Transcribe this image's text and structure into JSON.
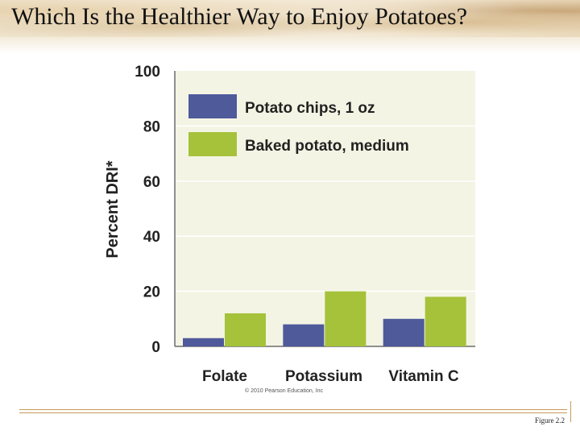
{
  "title": "Which Is the Healthier Way to Enjoy Potatoes?",
  "copyright": "© 2010 Pearson Education, Inc",
  "figure_label": "Figure 2.2",
  "colors": {
    "plot_bg": "#f4f4e4",
    "chips": "#4f5a9b",
    "baked": "#a5c23a"
  },
  "chart_data": {
    "type": "bar",
    "title": "",
    "xlabel": "",
    "ylabel": "Percent DRI*",
    "ylim": [
      0,
      100
    ],
    "yticks": [
      0,
      20,
      40,
      60,
      80,
      100
    ],
    "categories": [
      "Folate",
      "Potassium",
      "Vitamin C"
    ],
    "series": [
      {
        "name": "Potato chips, 1 oz",
        "values": [
          3,
          8,
          10
        ]
      },
      {
        "name": "Baked potato, medium",
        "values": [
          12,
          20,
          18
        ]
      }
    ],
    "grid": true,
    "legend": "top-left"
  }
}
